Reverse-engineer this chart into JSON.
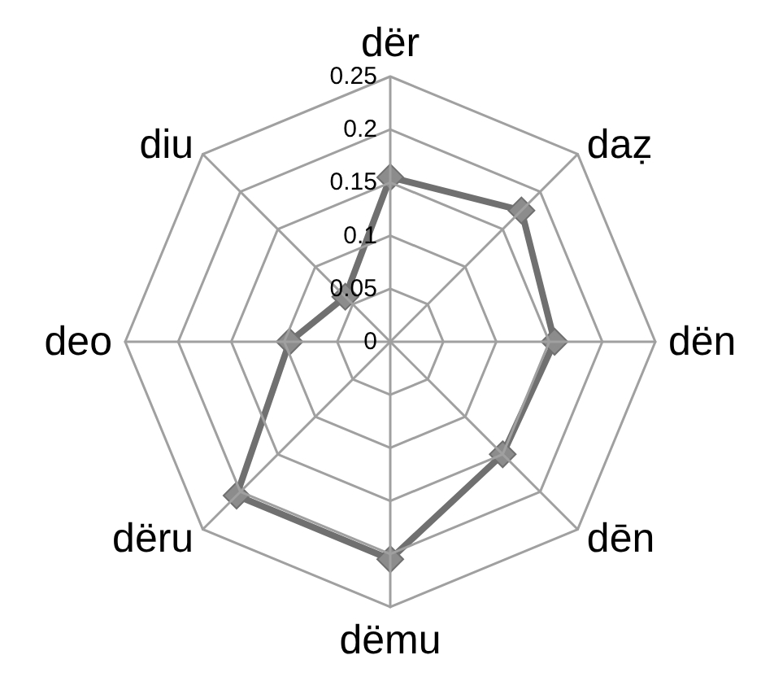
{
  "chart_data": {
    "type": "radar",
    "categories": [
      "dër",
      "daẓ",
      "dën",
      "dēn",
      "dëmu",
      "dëru",
      "deo",
      "diu"
    ],
    "series": [
      {
        "color": "#707070",
        "values": [
          0.155,
          0.175,
          0.155,
          0.15,
          0.205,
          0.205,
          0.095,
          0.06
        ]
      }
    ],
    "ylim": [
      0,
      0.25
    ],
    "yticks": [
      0,
      0.05,
      0.1,
      0.15,
      0.2,
      0.25
    ],
    "grid": true,
    "marker": "diamond",
    "line_style": "solid"
  }
}
